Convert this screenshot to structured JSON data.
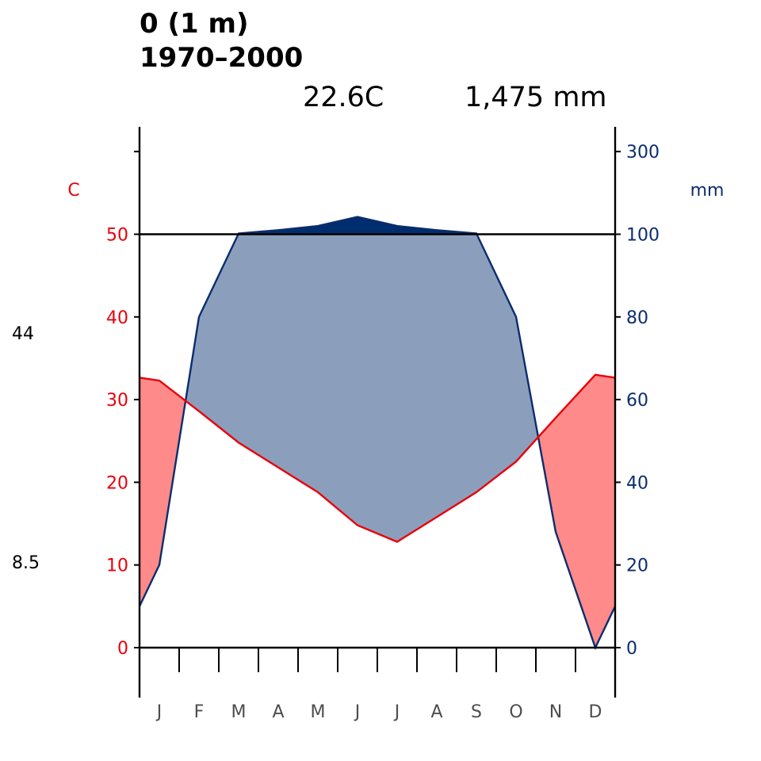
{
  "header": {
    "title_line1": "0 (1 m)",
    "title_line2": "1970–2000",
    "mean_temp": "22.6C",
    "annual_precip": "1,475 mm"
  },
  "side_labels": {
    "max": "44",
    "min": "8.5"
  },
  "colors": {
    "temp_line": "#e8000b",
    "temp_fill": "#ff8a8a",
    "prec_line": "#0b2d6e",
    "humid_fill": "#8b9fbd",
    "wet_fill": "#002d6e",
    "temp_tick_text": "#e8000b",
    "prec_tick_text": "#0b2d6e"
  },
  "chart_data": {
    "type": "line",
    "categories": [
      "J",
      "F",
      "M",
      "A",
      "M",
      "J",
      "J",
      "A",
      "S",
      "O",
      "N",
      "D"
    ],
    "temp_axis": {
      "label": "C",
      "ticks": [
        0,
        10,
        20,
        30,
        40,
        50
      ],
      "ylim": [
        0,
        58
      ]
    },
    "prec_axis": {
      "label": "mm",
      "ticks": [
        0,
        20,
        40,
        60,
        80,
        100,
        300
      ],
      "ylim": [
        0,
        300
      ]
    },
    "series": [
      {
        "values": [
          32.3,
          28.6,
          24.8,
          21.8,
          18.8,
          14.8,
          12.8,
          15.8,
          18.8,
          22.5,
          27.8,
          33.0
        ]
      },
      {
        "values": [
          20,
          80,
          102,
          110,
          120,
          142,
          120,
          110,
          102,
          80,
          28,
          0
        ]
      }
    ],
    "annotations": [
      "22.6C",
      "1,475 mm",
      "44",
      "8.5"
    ]
  }
}
